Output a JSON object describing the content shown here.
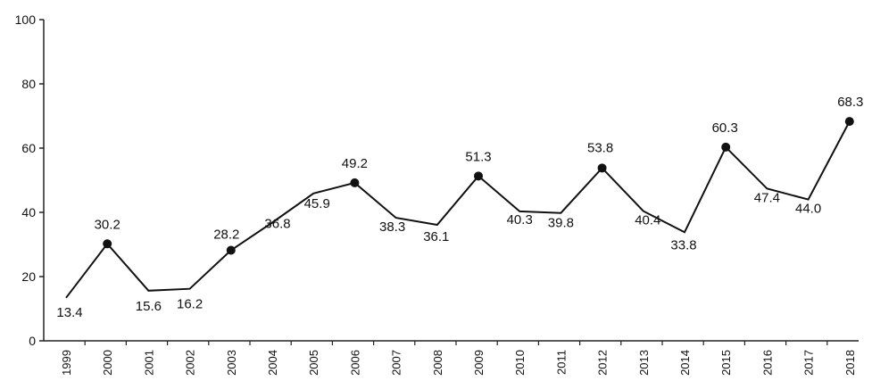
{
  "chart_data": {
    "type": "line",
    "title": "",
    "xlabel": "",
    "ylabel": "",
    "ylim": [
      0,
      100
    ],
    "yticks": [
      "0",
      "20",
      "40",
      "60",
      "80",
      "100"
    ],
    "grid": false,
    "categories": [
      "1999",
      "2000",
      "2001",
      "2002",
      "2003",
      "2004",
      "2005",
      "2006",
      "2007",
      "2008",
      "2009",
      "2010",
      "2011",
      "2012",
      "2013",
      "2014",
      "2015",
      "2016",
      "2017",
      "2018"
    ],
    "series": [
      {
        "values": [
          13.4,
          30.2,
          15.6,
          16.2,
          28.2,
          36.8,
          45.9,
          49.2,
          38.3,
          36.1,
          51.3,
          40.3,
          39.8,
          53.8,
          40.4,
          33.8,
          60.3,
          47.4,
          44.0,
          68.3
        ],
        "labels": [
          "13.4",
          "30.2",
          "15.6",
          "16.2",
          "28.2",
          "36.8",
          "45.9",
          "49.2",
          "38.3",
          "36.1",
          "51.3",
          "40.3",
          "39.8",
          "53.8",
          "40.4",
          "33.8",
          "60.3",
          "47.4",
          "44.0",
          "68.3"
        ],
        "markers": [
          false,
          true,
          false,
          false,
          true,
          false,
          false,
          true,
          false,
          false,
          true,
          false,
          false,
          true,
          false,
          false,
          true,
          false,
          false,
          true
        ],
        "color": "#111111"
      }
    ]
  }
}
